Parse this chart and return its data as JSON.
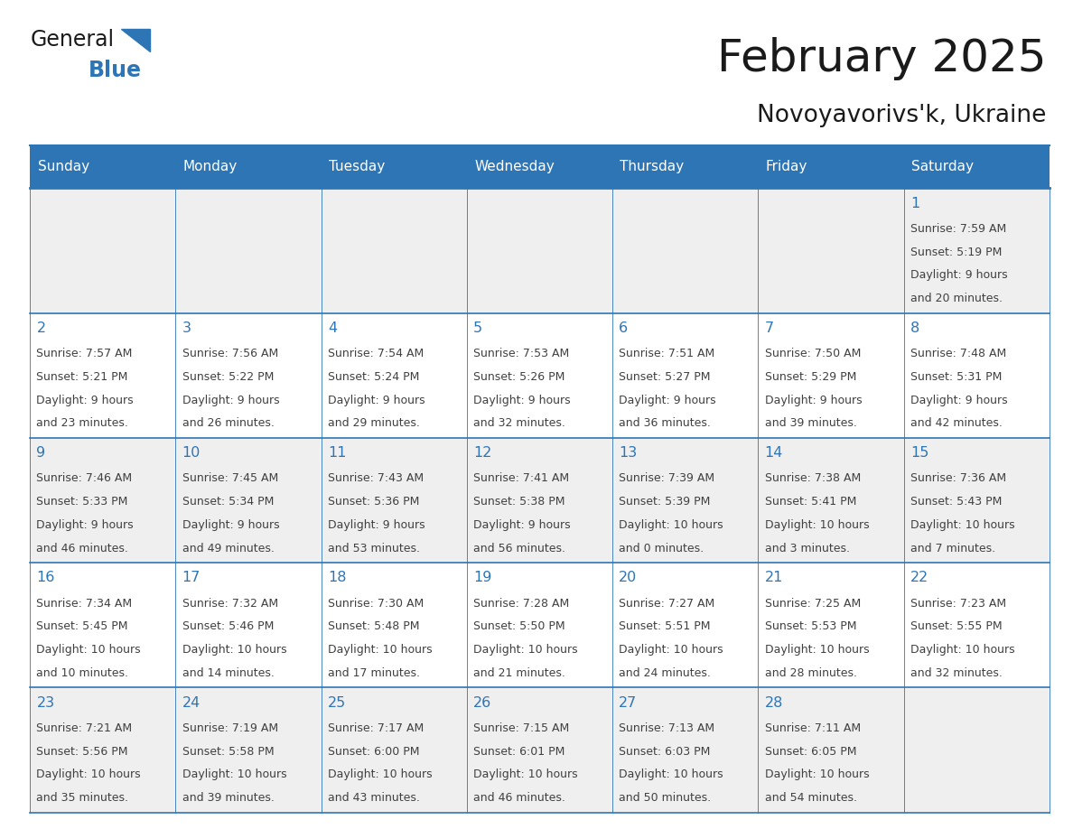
{
  "title": "February 2025",
  "subtitle": "Novoyavorivs'k, Ukraine",
  "header_color": "#2E75B6",
  "header_text_color": "#FFFFFF",
  "day_names": [
    "Sunday",
    "Monday",
    "Tuesday",
    "Wednesday",
    "Thursday",
    "Friday",
    "Saturday"
  ],
  "row_colors": [
    "#EFEFEF",
    "#FFFFFF",
    "#EFEFEF",
    "#FFFFFF",
    "#EFEFEF"
  ],
  "days": [
    {
      "date": 1,
      "col": 6,
      "row": 0,
      "sunrise": "7:59 AM",
      "sunset": "5:19 PM",
      "daylight": "9 hours and 20 minutes."
    },
    {
      "date": 2,
      "col": 0,
      "row": 1,
      "sunrise": "7:57 AM",
      "sunset": "5:21 PM",
      "daylight": "9 hours and 23 minutes."
    },
    {
      "date": 3,
      "col": 1,
      "row": 1,
      "sunrise": "7:56 AM",
      "sunset": "5:22 PM",
      "daylight": "9 hours and 26 minutes."
    },
    {
      "date": 4,
      "col": 2,
      "row": 1,
      "sunrise": "7:54 AM",
      "sunset": "5:24 PM",
      "daylight": "9 hours and 29 minutes."
    },
    {
      "date": 5,
      "col": 3,
      "row": 1,
      "sunrise": "7:53 AM",
      "sunset": "5:26 PM",
      "daylight": "9 hours and 32 minutes."
    },
    {
      "date": 6,
      "col": 4,
      "row": 1,
      "sunrise": "7:51 AM",
      "sunset": "5:27 PM",
      "daylight": "9 hours and 36 minutes."
    },
    {
      "date": 7,
      "col": 5,
      "row": 1,
      "sunrise": "7:50 AM",
      "sunset": "5:29 PM",
      "daylight": "9 hours and 39 minutes."
    },
    {
      "date": 8,
      "col": 6,
      "row": 1,
      "sunrise": "7:48 AM",
      "sunset": "5:31 PM",
      "daylight": "9 hours and 42 minutes."
    },
    {
      "date": 9,
      "col": 0,
      "row": 2,
      "sunrise": "7:46 AM",
      "sunset": "5:33 PM",
      "daylight": "9 hours and 46 minutes."
    },
    {
      "date": 10,
      "col": 1,
      "row": 2,
      "sunrise": "7:45 AM",
      "sunset": "5:34 PM",
      "daylight": "9 hours and 49 minutes."
    },
    {
      "date": 11,
      "col": 2,
      "row": 2,
      "sunrise": "7:43 AM",
      "sunset": "5:36 PM",
      "daylight": "9 hours and 53 minutes."
    },
    {
      "date": 12,
      "col": 3,
      "row": 2,
      "sunrise": "7:41 AM",
      "sunset": "5:38 PM",
      "daylight": "9 hours and 56 minutes."
    },
    {
      "date": 13,
      "col": 4,
      "row": 2,
      "sunrise": "7:39 AM",
      "sunset": "5:39 PM",
      "daylight": "10 hours and 0 minutes."
    },
    {
      "date": 14,
      "col": 5,
      "row": 2,
      "sunrise": "7:38 AM",
      "sunset": "5:41 PM",
      "daylight": "10 hours and 3 minutes."
    },
    {
      "date": 15,
      "col": 6,
      "row": 2,
      "sunrise": "7:36 AM",
      "sunset": "5:43 PM",
      "daylight": "10 hours and 7 minutes."
    },
    {
      "date": 16,
      "col": 0,
      "row": 3,
      "sunrise": "7:34 AM",
      "sunset": "5:45 PM",
      "daylight": "10 hours and 10 minutes."
    },
    {
      "date": 17,
      "col": 1,
      "row": 3,
      "sunrise": "7:32 AM",
      "sunset": "5:46 PM",
      "daylight": "10 hours and 14 minutes."
    },
    {
      "date": 18,
      "col": 2,
      "row": 3,
      "sunrise": "7:30 AM",
      "sunset": "5:48 PM",
      "daylight": "10 hours and 17 minutes."
    },
    {
      "date": 19,
      "col": 3,
      "row": 3,
      "sunrise": "7:28 AM",
      "sunset": "5:50 PM",
      "daylight": "10 hours and 21 minutes."
    },
    {
      "date": 20,
      "col": 4,
      "row": 3,
      "sunrise": "7:27 AM",
      "sunset": "5:51 PM",
      "daylight": "10 hours and 24 minutes."
    },
    {
      "date": 21,
      "col": 5,
      "row": 3,
      "sunrise": "7:25 AM",
      "sunset": "5:53 PM",
      "daylight": "10 hours and 28 minutes."
    },
    {
      "date": 22,
      "col": 6,
      "row": 3,
      "sunrise": "7:23 AM",
      "sunset": "5:55 PM",
      "daylight": "10 hours and 32 minutes."
    },
    {
      "date": 23,
      "col": 0,
      "row": 4,
      "sunrise": "7:21 AM",
      "sunset": "5:56 PM",
      "daylight": "10 hours and 35 minutes."
    },
    {
      "date": 24,
      "col": 1,
      "row": 4,
      "sunrise": "7:19 AM",
      "sunset": "5:58 PM",
      "daylight": "10 hours and 39 minutes."
    },
    {
      "date": 25,
      "col": 2,
      "row": 4,
      "sunrise": "7:17 AM",
      "sunset": "6:00 PM",
      "daylight": "10 hours and 43 minutes."
    },
    {
      "date": 26,
      "col": 3,
      "row": 4,
      "sunrise": "7:15 AM",
      "sunset": "6:01 PM",
      "daylight": "10 hours and 46 minutes."
    },
    {
      "date": 27,
      "col": 4,
      "row": 4,
      "sunrise": "7:13 AM",
      "sunset": "6:03 PM",
      "daylight": "10 hours and 50 minutes."
    },
    {
      "date": 28,
      "col": 5,
      "row": 4,
      "sunrise": "7:11 AM",
      "sunset": "6:05 PM",
      "daylight": "10 hours and 54 minutes."
    }
  ],
  "num_rows": 5,
  "logo_color_general": "#1a1a1a",
  "logo_color_blue": "#2E75B6",
  "line_color": "#2E75B6",
  "cell_text_color": "#404040",
  "date_text_color": "#2E75B6"
}
